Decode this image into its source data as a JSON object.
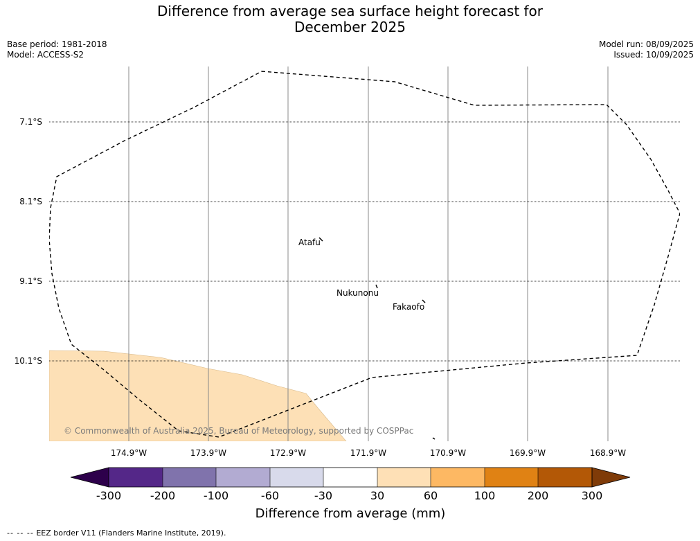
{
  "title_line1": "Difference from average sea surface height forecast for",
  "title_line2": "December 2025",
  "meta": {
    "base_period": "Base period: 1981-2018",
    "model": "Model: ACCESS-S2",
    "model_run": "Model run: 08/09/2025",
    "issued": "Issued: 10/09/2025"
  },
  "map": {
    "lat_labels": [
      "7.1°S",
      "8.1°S",
      "9.1°S",
      "10.1°S"
    ],
    "lon_labels": [
      "174.9°W",
      "173.9°W",
      "172.9°W",
      "171.9°W",
      "170.9°W",
      "169.9°W",
      "168.9°W"
    ],
    "place_names": [
      "Atafu",
      "Nukunonu",
      "Fakaofo"
    ],
    "copyright": "© Commonwealth of Australia 2025, Bureau of Meteorology, supported by COSPPac",
    "anomaly_fill_color": "#fde0b6",
    "eez_line_color": "#000000"
  },
  "colorbar": {
    "tick_labels": [
      "-300",
      "-200",
      "-100",
      "-60",
      "-30",
      "30",
      "60",
      "100",
      "200",
      "300"
    ],
    "colors": [
      "#2d004b",
      "#542788",
      "#8073ac",
      "#b2abd2",
      "#d8daeb",
      "#ffffff",
      "#fee0b6",
      "#fdb863",
      "#e08214",
      "#b35806",
      "#7f3b08"
    ],
    "label": "Difference from average (mm)"
  },
  "footer": {
    "dash_symbol": "--  --  --",
    "text": "EEZ border V11 (Flanders Marine Institute, 2019)."
  }
}
